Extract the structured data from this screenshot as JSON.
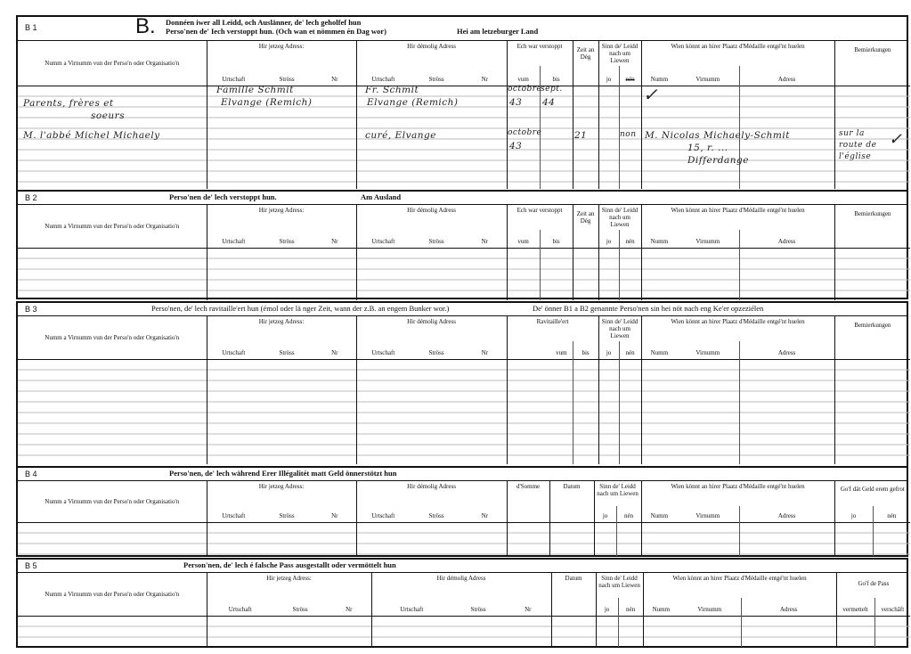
{
  "common": {
    "name_col": "Numm a Virnumm vun der Perso'n oder Organisatio'n",
    "current_address": "Hir jetzeg Adress:",
    "former_address": "Hir démolig Adress",
    "urtschaft": "Urtschaft",
    "stross": "Ströss",
    "nr": "Nr",
    "hidden": "Ech war verstoppt",
    "vum": "vum",
    "bis": "bis",
    "zeit": "Zeit an Dég",
    "risk": "Sinn de' Leidd nach um Liewen",
    "jo": "jo",
    "nen": "nén",
    "medal": "Wien könnt an hirer Plaatz d'Médaille entgé'nt huelen",
    "numm": "Numm",
    "virnumm": "Virnumm",
    "adress": "Adress",
    "remarks": "Bemierkungen",
    "supplied": "Ravitaille'ert",
    "amount": "d'Somme",
    "datum": "Datum",
    "money_given": "Go'f dät Geld erem gefrot",
    "pass_given": "Go'f de Pass",
    "vermettelt": "vermettelt",
    "verschaft": "verschâft"
  },
  "b1": {
    "code": "B 1",
    "letter": "B.",
    "title_line1": "Donnéen iwer all Leidd, och Auslänner, de' lech geholfef hun",
    "title_line2": "Perso'nen de' Iech verstoppt hun. (Och wan et nömmen én Dag wor)",
    "region": "Hei am letzeburger Land",
    "entries": [
      {
        "name": [
          "Parents, frères et",
          "soeurs"
        ],
        "current_address": [
          "Famille Schmit",
          "Elvange (Remich)"
        ],
        "former_address": [
          "Fr. Schmit",
          "Elvange (Remich)"
        ],
        "from": [
          "octobre",
          "43"
        ],
        "to": [
          "sept.",
          "44"
        ],
        "medal_mark": "✓"
      },
      {
        "name": [
          "M. l'abbé Michel Michaely"
        ],
        "former_address": [
          "curé, Elvange"
        ],
        "from": [
          "octobre",
          "43"
        ],
        "days": "21",
        "risk_no": "non",
        "medal": [
          "M. Nicolas Michaely-Schmit",
          "15, r. ... ",
          "Differdange"
        ],
        "remarks": [
          "sur la",
          "route de",
          "l'église"
        ],
        "remarks_mark": "✓"
      }
    ]
  },
  "b2": {
    "code": "B 2",
    "title": "Perso'nen de' lech verstoppt hun.",
    "region": "Am Ausland"
  },
  "b3": {
    "code": "B 3",
    "title": "Perso'nen, de' lech ravitaille'ert hun (émol oder lä nger Zeit, wann der z.B. an engem Bunker wor.)",
    "note": "De' önner B1 a B2 genannte Perso'nen sin hei nöt nach eng Ke'er opzeziélen"
  },
  "b4": {
    "code": "B 4",
    "title": "Perso'nen, de' lech während Erer Illégalitét matt Geld önnerstötzt hun"
  },
  "b5": {
    "code": "B 5",
    "title": "Person'nen, de' lech é falsche Pass ausgestallt oder vermöttelt hun"
  }
}
